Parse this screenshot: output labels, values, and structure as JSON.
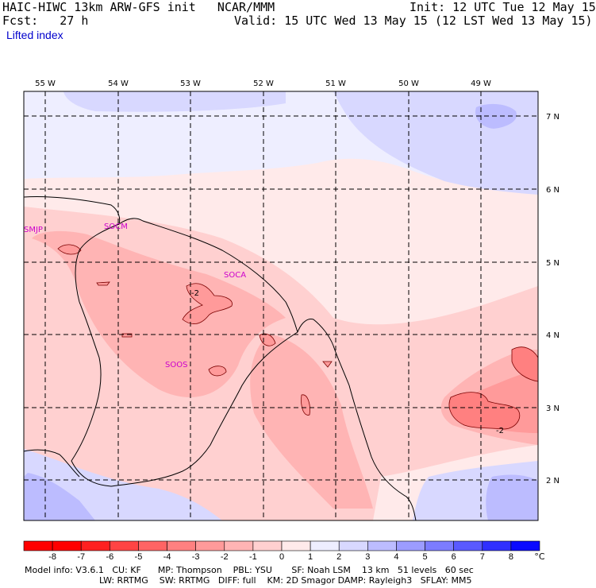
{
  "header": {
    "title": "HAIC-HIWC 13km ARW-GFS init   NCAR/MMM",
    "init": "Init: 12 UTC Tue 12 May 15",
    "fcst": "Fcst:   27 h",
    "valid": "Valid: 15 UTC Wed 13 May 15 (12 LST Wed 13 May 15)",
    "field": "Lifted index"
  },
  "map": {
    "lon_labels": [
      "55 W",
      "54 W",
      "53 W",
      "52 W",
      "51 W",
      "50 W",
      "49 W"
    ],
    "lat_labels": [
      "7 N",
      "6 N",
      "5 N",
      "4 N",
      "3 N",
      "2 N"
    ],
    "stations": [
      "SMJP",
      "SOCM",
      "SOCA",
      "SOOS"
    ],
    "contour_labels": [
      "-2",
      "-2"
    ]
  },
  "colorbar": {
    "ticks": [
      "-8",
      "-7",
      "-6",
      "-5",
      "-4",
      "-3",
      "-2",
      "-1",
      "0",
      "1",
      "2",
      "3",
      "4",
      "5",
      "6",
      "7",
      "8"
    ],
    "unit": "°C",
    "colors": [
      "#ff0000",
      "#ff2020",
      "#ff4444",
      "#ff6464",
      "#ff8080",
      "#ff9a9a",
      "#ffb4b4",
      "#ffd0d0",
      "#ffeaea",
      "#eeeeff",
      "#d8d8ff",
      "#bcbcff",
      "#9c9cff",
      "#7c7cff",
      "#5a5aff",
      "#3030ff",
      "#0a0aff"
    ]
  },
  "footer": {
    "line1": "Model info: V3.6.1   CU: KF      MP: Thompson    PBL: YSU       SF: Noah LSM    13 km   51 levels   60 sec",
    "line2": "LW: RRTMG    SW: RRTMG   DIFF: full    KM: 2D Smagor DAMP: Rayleigh3   SFLAY: MM5"
  }
}
